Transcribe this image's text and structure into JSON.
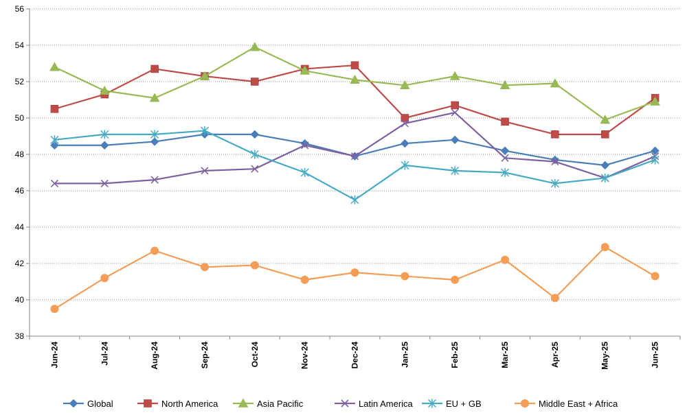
{
  "chart_data": {
    "type": "line",
    "title": "",
    "xlabel": "",
    "ylabel": "",
    "ylim": [
      38,
      56
    ],
    "yticks": [
      38,
      40,
      42,
      44,
      46,
      48,
      50,
      52,
      54,
      56
    ],
    "grid": "horizontal-dotted",
    "legend_position": "bottom",
    "categories": [
      "Jun-24",
      "Jul-24",
      "Aug-24",
      "Sep-24",
      "Oct-24",
      "Nov-24",
      "Dec-24",
      "Jan-25",
      "Feb-25",
      "Mar-25",
      "Apr-25",
      "May-25",
      "Jun-25"
    ],
    "series": [
      {
        "name": "Global",
        "color": "#4a7ebb",
        "marker": "diamond",
        "values": [
          48.5,
          48.5,
          48.7,
          49.1,
          49.1,
          48.6,
          47.9,
          48.6,
          48.8,
          48.2,
          47.7,
          47.4,
          48.2
        ]
      },
      {
        "name": "North America",
        "color": "#be4b48",
        "marker": "square",
        "values": [
          50.5,
          51.3,
          52.7,
          52.3,
          52.0,
          52.7,
          52.9,
          50.0,
          50.7,
          49.8,
          49.1,
          49.1,
          51.1
        ]
      },
      {
        "name": "Asia Pacific",
        "color": "#98b954",
        "marker": "triangle",
        "values": [
          52.8,
          51.5,
          51.1,
          52.3,
          53.9,
          52.6,
          52.1,
          51.8,
          52.3,
          51.8,
          51.9,
          49.9,
          50.9
        ]
      },
      {
        "name": "Latin America",
        "color": "#7d60a0",
        "marker": "x",
        "values": [
          46.4,
          46.4,
          46.6,
          47.1,
          47.2,
          48.5,
          47.9,
          49.7,
          50.3,
          47.8,
          47.6,
          46.7,
          47.9
        ]
      },
      {
        "name": "EU + GB",
        "color": "#46aac5",
        "marker": "star",
        "values": [
          48.8,
          49.1,
          49.1,
          49.3,
          48.0,
          47.0,
          45.5,
          47.4,
          47.1,
          47.0,
          46.4,
          46.7,
          47.7
        ]
      },
      {
        "name": "Middle East + Africa",
        "color": "#f59d56",
        "marker": "circle",
        "values": [
          39.5,
          41.2,
          42.7,
          41.8,
          41.9,
          41.1,
          41.5,
          41.3,
          41.1,
          42.2,
          40.1,
          42.9,
          41.3
        ]
      }
    ]
  }
}
